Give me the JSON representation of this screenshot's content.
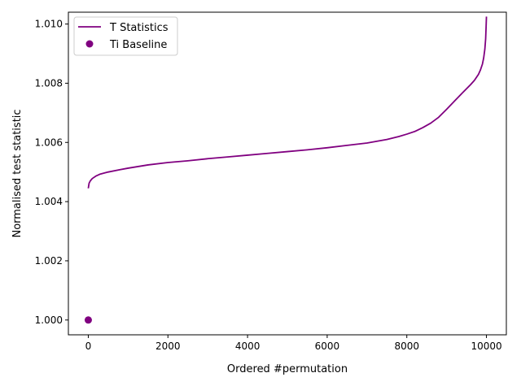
{
  "chart_data": {
    "type": "line",
    "title": "",
    "xlabel": "Ordered #permutation",
    "ylabel": "Normalised test statistic",
    "xlim": [
      -500,
      10500
    ],
    "ylim": [
      0.9995,
      1.0104
    ],
    "xticks": [
      0,
      2000,
      4000,
      6000,
      8000,
      10000
    ],
    "xtick_labels": [
      "0",
      "2000",
      "4000",
      "6000",
      "8000",
      "10000"
    ],
    "yticks": [
      1.0,
      1.002,
      1.004,
      1.006,
      1.008,
      1.01
    ],
    "ytick_labels": [
      "1.000",
      "1.002",
      "1.004",
      "1.006",
      "1.008",
      "1.010"
    ],
    "grid": false,
    "legend": {
      "position": "top-left",
      "entries": [
        "T Statistics",
        "Ti Baseline"
      ]
    },
    "series": [
      {
        "name": "T Statistics",
        "kind": "line",
        "color": "#800080",
        "x": [
          0,
          20,
          50,
          100,
          200,
          300,
          500,
          800,
          1000,
          1500,
          2000,
          2500,
          3000,
          3500,
          4000,
          4500,
          5000,
          5500,
          6000,
          6500,
          7000,
          7500,
          7800,
          8000,
          8200,
          8400,
          8600,
          8800,
          9000,
          9200,
          9400,
          9600,
          9700,
          9800,
          9850,
          9900,
          9930,
          9960,
          9980,
          9990,
          10000
        ],
        "y": [
          1.00445,
          1.00462,
          1.0047,
          1.00478,
          1.00487,
          1.00493,
          1.005,
          1.00508,
          1.00513,
          1.00524,
          1.00532,
          1.00538,
          1.00545,
          1.00551,
          1.00557,
          1.00563,
          1.00569,
          1.00575,
          1.00582,
          1.0059,
          1.00598,
          1.0061,
          1.0062,
          1.00628,
          1.00637,
          1.0065,
          1.00665,
          1.00685,
          1.00712,
          1.0074,
          1.00768,
          1.00795,
          1.0081,
          1.0083,
          1.00845,
          1.00865,
          1.00885,
          1.00915,
          1.0095,
          1.00985,
          1.01025
        ]
      },
      {
        "name": "Ti Baseline",
        "kind": "point",
        "color": "#800080",
        "x": [
          0
        ],
        "y": [
          1.0
        ]
      }
    ]
  }
}
